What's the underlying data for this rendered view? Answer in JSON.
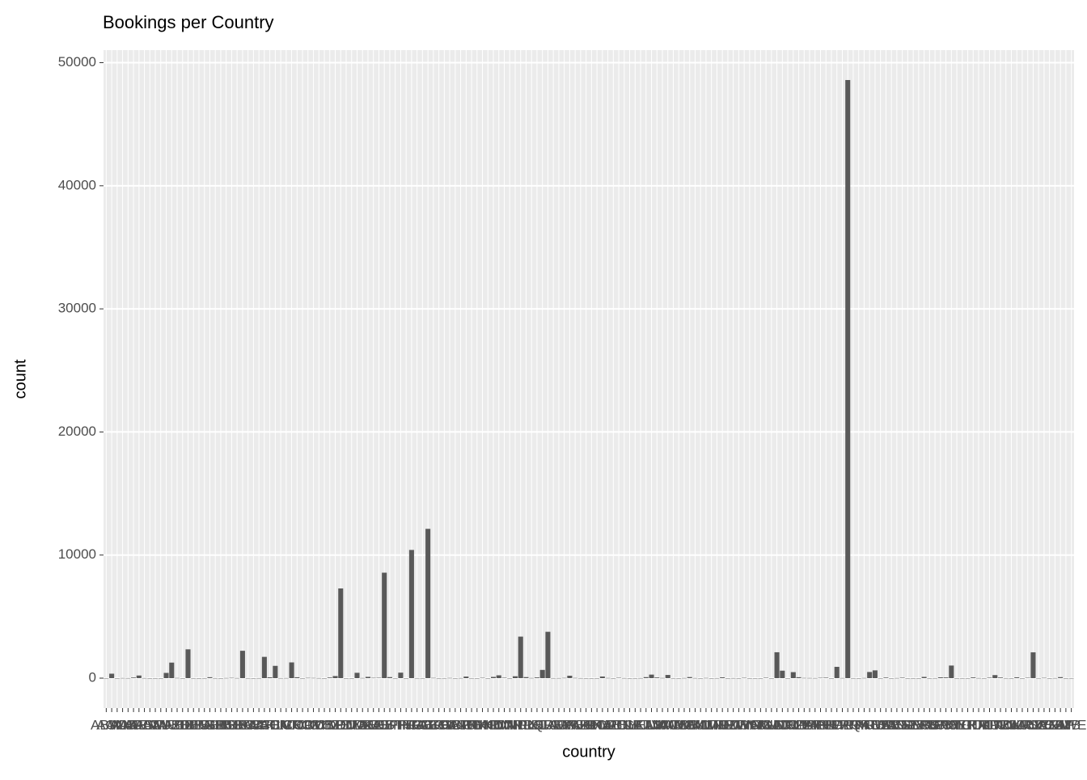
{
  "chart_data": {
    "type": "bar",
    "title": "Bookings per Country",
    "x_label": "country",
    "y_label": "count",
    "categories": [
      "ABW",
      "AGO",
      "AIA",
      "ALB",
      "AND",
      "ARE",
      "ARG",
      "ARM",
      "ASM",
      "ATA",
      "ATF",
      "AUS",
      "AUT",
      "AZE",
      "BDI",
      "BEL",
      "BEN",
      "BFA",
      "BGD",
      "BGR",
      "BHR",
      "BHS",
      "BIH",
      "BLR",
      "BOL",
      "BRA",
      "BRB",
      "BWA",
      "CAF",
      "CHE",
      "CHL",
      "CHN",
      "CIV",
      "CMR",
      "CN",
      "COL",
      "COM",
      "CPV",
      "CRI",
      "CUB",
      "CYM",
      "CYP",
      "CZE",
      "DEU",
      "DJI",
      "DMA",
      "DNK",
      "DOM",
      "DZA",
      "ECU",
      "EGY",
      "ESP",
      "EST",
      "ETH",
      "FIN",
      "FJI",
      "FRA",
      "FRO",
      "GAB",
      "GBR",
      "GEO",
      "GGY",
      "GHA",
      "GIB",
      "GLP",
      "GNB",
      "GRC",
      "GTM",
      "GUY",
      "HKG",
      "HND",
      "HRV",
      "HUN",
      "IDN",
      "IMN",
      "IND",
      "IRL",
      "IRN",
      "IRQ",
      "ISL",
      "ISR",
      "ITA",
      "JAM",
      "JEY",
      "JOR",
      "JPN",
      "KAZ",
      "KEN",
      "KHM",
      "KIR",
      "KNA",
      "KOR",
      "KWT",
      "LAO",
      "LBN",
      "LBY",
      "LCA",
      "LIE",
      "LKA",
      "LTU",
      "LUX",
      "LVA",
      "MAC",
      "MAR",
      "MCO",
      "MDG",
      "MDV",
      "MEX",
      "MKD",
      "MLI",
      "MLT",
      "MMR",
      "MNE",
      "MOZ",
      "MRT",
      "MUS",
      "MWI",
      "MYS",
      "MYT",
      "NAM",
      "NCL",
      "NGA",
      "NIC",
      "NLD",
      "NOR",
      "NPL",
      "NULL",
      "NZL",
      "OMN",
      "PAK",
      "PAN",
      "PER",
      "PHL",
      "PLW",
      "POL",
      "PRI",
      "PRT",
      "PRY",
      "PYF",
      "QAT",
      "ROU",
      "RUS",
      "RWA",
      "SAU",
      "SDN",
      "SEN",
      "SGP",
      "SLE",
      "SLV",
      "SMR",
      "SRB",
      "STP",
      "SUR",
      "SVK",
      "SVN",
      "SWE",
      "SYC",
      "SYR",
      "TGO",
      "THA",
      "TJK",
      "TMP",
      "TUN",
      "TUR",
      "TWN",
      "TZA",
      "UGA",
      "UKR",
      "UMI",
      "URY",
      "USA",
      "UZB",
      "VEN",
      "VGB",
      "VNM",
      "ZAF",
      "ZMB",
      "ZWE"
    ],
    "values": [
      2,
      362,
      1,
      12,
      7,
      51,
      214,
      8,
      1,
      2,
      1,
      426,
      1263,
      17,
      1,
      2342,
      3,
      1,
      3,
      75,
      5,
      1,
      13,
      26,
      10,
      2224,
      4,
      1,
      5,
      1730,
      65,
      999,
      6,
      10,
      1279,
      71,
      2,
      24,
      19,
      8,
      1,
      51,
      171,
      7287,
      1,
      1,
      435,
      14,
      103,
      27,
      32,
      8568,
      83,
      3,
      447,
      1,
      10415,
      5,
      4,
      12129,
      22,
      3,
      4,
      18,
      2,
      9,
      128,
      4,
      1,
      29,
      1,
      100,
      230,
      35,
      2,
      152,
      3375,
      83,
      14,
      57,
      669,
      3766,
      6,
      8,
      21,
      197,
      19,
      6,
      2,
      1,
      2,
      133,
      16,
      2,
      31,
      8,
      1,
      3,
      7,
      81,
      287,
      55,
      16,
      259,
      4,
      1,
      12,
      85,
      10,
      1,
      18,
      1,
      5,
      67,
      1,
      7,
      2,
      28,
      2,
      1,
      1,
      34,
      1,
      2104,
      607,
      1,
      488,
      74,
      18,
      14,
      9,
      29,
      40,
      1,
      919,
      12,
      48590,
      4,
      1,
      15,
      500,
      632,
      2,
      48,
      1,
      11,
      39,
      1,
      2,
      1,
      101,
      2,
      5,
      65,
      57,
      1024,
      2,
      3,
      2,
      59,
      9,
      3,
      39,
      248,
      51,
      5,
      2,
      68,
      1,
      32,
      2097,
      4,
      26,
      1,
      8,
      80,
      2,
      4
    ],
    "color": "#595959",
    "ylim": [
      -2430,
      51020
    ],
    "yticks": [
      0,
      10000,
      20000,
      30000,
      40000,
      50000
    ],
    "grid": true
  }
}
